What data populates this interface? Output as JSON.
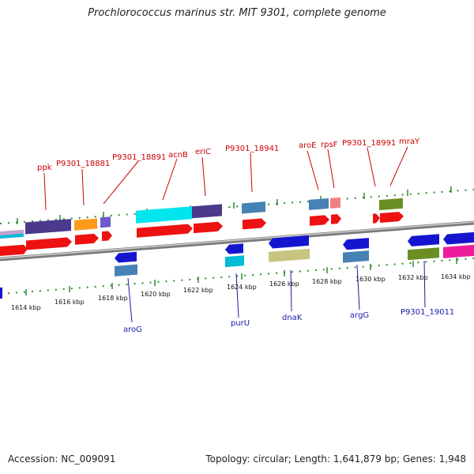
{
  "title": "Prochlorococcus marinus str. MIT 9301, complete genome",
  "accession": "Accession: NC_009091",
  "topology": "Topology: circular; Length: 1,641,879 bp; Genes: 1,948",
  "colors": {
    "backbone": "#8a8a8a",
    "tick": "#2e8b2e",
    "label_top": "#cc0000",
    "label_bottom": "#1a1aaa"
  },
  "ticks": [
    "1614 kbp",
    "1616 kbp",
    "1618 kbp",
    "1620 kbp",
    "1622 kbp",
    "1624 kbp",
    "1626 kbp",
    "1628 kbp",
    "1630 kbp",
    "1632 kbp",
    "1634 kbp"
  ],
  "top_labels": [
    "ppk",
    "P9301_18881",
    "P9301_18891",
    "acnB",
    "eriC",
    "P9301_18941",
    "aroE",
    "rpsF",
    "P9301_18991",
    "mraY"
  ],
  "bottom_labels": [
    "aroG",
    "purU",
    "dnaK",
    "argG",
    "P9301_19011"
  ]
}
